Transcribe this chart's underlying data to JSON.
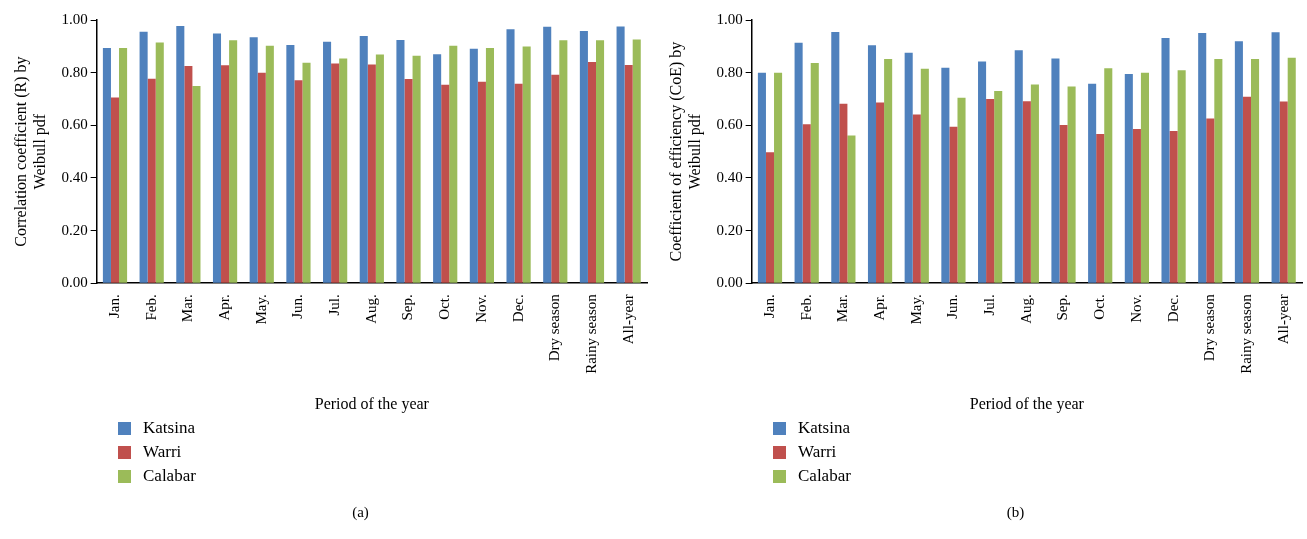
{
  "chart_data": [
    {
      "type": "bar",
      "xlabel": "Period of the year",
      "ylabel": "Correlation coefficient (R) by Weibull pdf",
      "categories": [
        "Jan.",
        "Feb.",
        "Mar.",
        "Apr.",
        "May.",
        "Jun.",
        "Jul.",
        "Aug.",
        "Sep.",
        "Oct.",
        "Nov.",
        "Dec.",
        "Dry season",
        "Rainy season",
        "All-year"
      ],
      "series": [
        {
          "name": "Katsina",
          "color": "#4f81bd",
          "values": [
            0.894,
            0.955,
            0.977,
            0.949,
            0.934,
            0.905,
            0.917,
            0.939,
            0.924,
            0.87,
            0.891,
            0.965,
            0.974,
            0.958,
            0.975
          ]
        },
        {
          "name": "Warri",
          "color": "#c0504d",
          "values": [
            0.706,
            0.777,
            0.825,
            0.828,
            0.8,
            0.771,
            0.835,
            0.831,
            0.776,
            0.754,
            0.765,
            0.758,
            0.792,
            0.84,
            0.829
          ]
        },
        {
          "name": "Calabar",
          "color": "#9bbb59",
          "values": [
            0.894,
            0.915,
            0.749,
            0.923,
            0.902,
            0.838,
            0.854,
            0.869,
            0.864,
            0.902,
            0.894,
            0.899,
            0.923,
            0.923,
            0.926
          ]
        }
      ],
      "ylim": [
        0,
        1
      ],
      "yticks": [
        {
          "value": 0,
          "label": "0.00"
        },
        {
          "value": 0.2,
          "label": "0.20"
        },
        {
          "value": 0.4,
          "label": "0.40"
        },
        {
          "value": 0.6,
          "label": "0.60"
        },
        {
          "value": 0.8,
          "label": "0.80"
        },
        {
          "value": 1,
          "label": "1.00"
        }
      ],
      "grid": false,
      "legend": "bottom left",
      "annotations": [
        "(a)"
      ]
    },
    {
      "type": "bar",
      "xlabel": "Period of the year",
      "ylabel": "Coefficient of efficiency (CoE) by Weibull pdf",
      "categories": [
        "Jan.",
        "Feb.",
        "Mar.",
        "Apr.",
        "May.",
        "Jun.",
        "Jul.",
        "Aug.",
        "Sep.",
        "Oct.",
        "Nov.",
        "Dec.",
        "Dry season",
        "Rainy season",
        "All-year"
      ],
      "series": [
        {
          "name": "Katsina",
          "color": "#4f81bd",
          "values": [
            0.8,
            0.914,
            0.954,
            0.904,
            0.876,
            0.819,
            0.842,
            0.885,
            0.854,
            0.758,
            0.795,
            0.932,
            0.951,
            0.919,
            0.953
          ]
        },
        {
          "name": "Warri",
          "color": "#c0504d",
          "values": [
            0.498,
            0.604,
            0.682,
            0.687,
            0.641,
            0.594,
            0.7,
            0.691,
            0.601,
            0.567,
            0.586,
            0.578,
            0.626,
            0.708,
            0.69
          ]
        },
        {
          "name": "Calabar",
          "color": "#9bbb59",
          "values": [
            0.8,
            0.837,
            0.561,
            0.852,
            0.815,
            0.705,
            0.73,
            0.755,
            0.747,
            0.817,
            0.8,
            0.809,
            0.852,
            0.852,
            0.857
          ]
        }
      ],
      "ylim": [
        0,
        1
      ],
      "yticks": [
        {
          "value": 0,
          "label": "0.00"
        },
        {
          "value": 0.2,
          "label": "0.20"
        },
        {
          "value": 0.4,
          "label": "0.40"
        },
        {
          "value": 0.6,
          "label": "0.60"
        },
        {
          "value": 0.8,
          "label": "0.80"
        },
        {
          "value": 1,
          "label": "1.00"
        }
      ],
      "grid": false,
      "legend": "bottom left",
      "annotations": [
        "(b)"
      ]
    }
  ]
}
